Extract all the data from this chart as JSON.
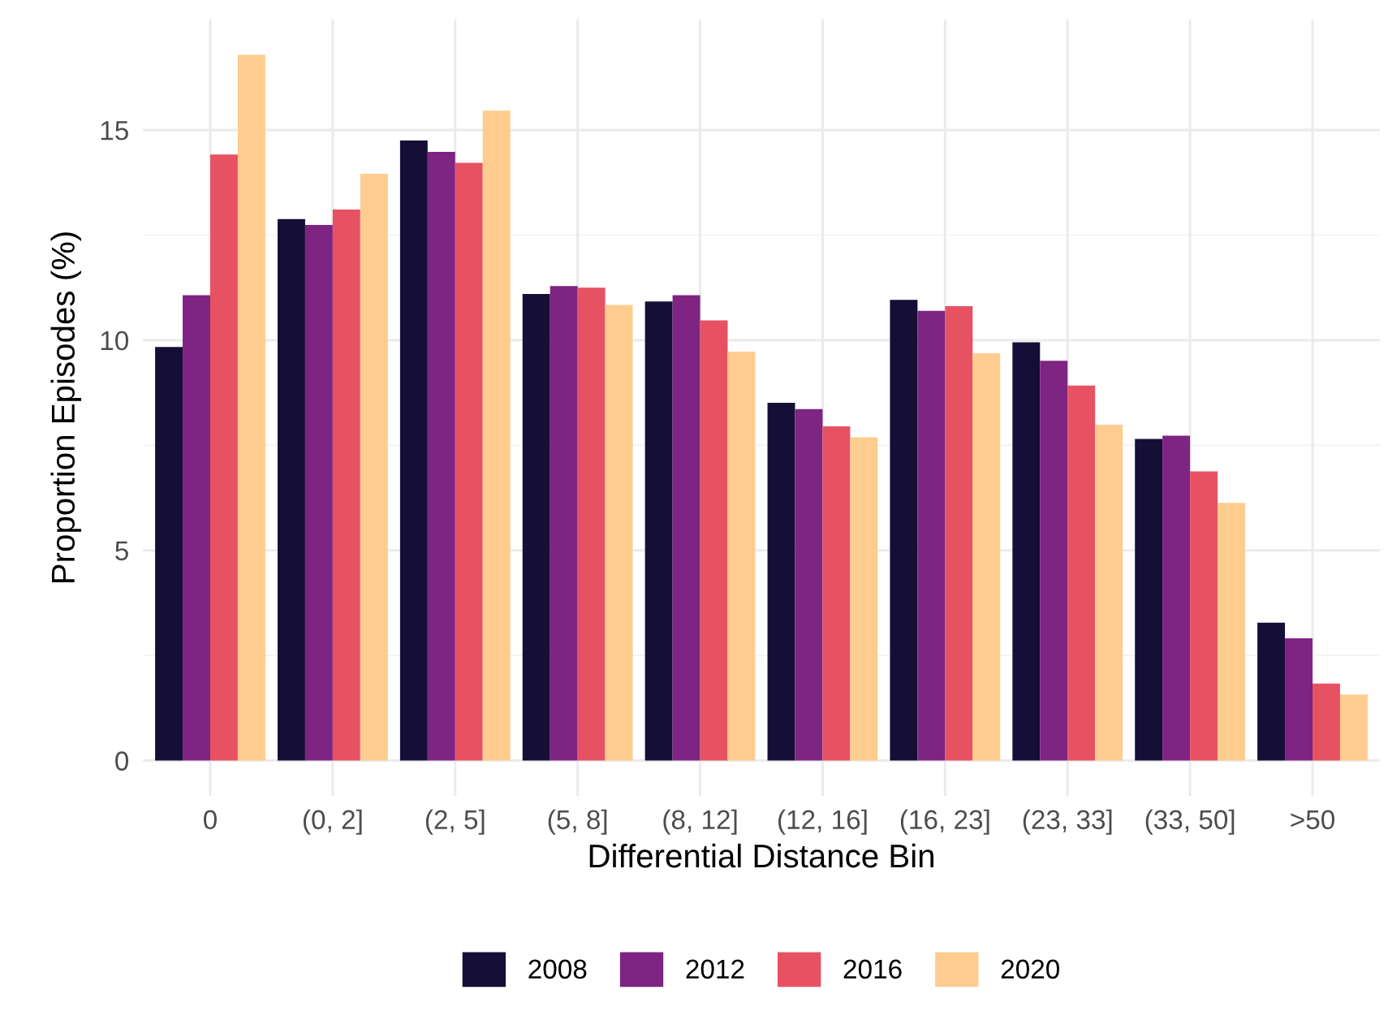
{
  "chart_data": {
    "type": "bar",
    "xlabel": "Differential Distance Bin",
    "ylabel": "Proportion Episodes (%)",
    "categories": [
      "0",
      "(0, 2]",
      "(2, 5]",
      "(5, 8]",
      "(8, 12]",
      "(12, 16]",
      "(16, 23]",
      "(23, 33]",
      "(33, 50]",
      ">50"
    ],
    "series": [
      {
        "name": "2008",
        "color": "#150e37",
        "values": [
          9.84,
          12.88,
          14.75,
          11.1,
          10.92,
          8.51,
          10.96,
          9.95,
          7.65,
          3.28
        ]
      },
      {
        "name": "2012",
        "color": "#7e2482",
        "values": [
          11.07,
          12.74,
          14.48,
          11.29,
          11.07,
          8.36,
          10.7,
          9.51,
          7.73,
          2.91
        ]
      },
      {
        "name": "2016",
        "color": "#e75263",
        "values": [
          14.42,
          13.11,
          14.22,
          11.25,
          10.47,
          7.95,
          10.81,
          8.92,
          6.88,
          1.83
        ]
      },
      {
        "name": "2020",
        "color": "#fecc8f",
        "values": [
          16.79,
          13.96,
          15.46,
          10.84,
          9.73,
          7.69,
          9.69,
          7.99,
          6.13,
          1.57
        ]
      }
    ],
    "ylim": [
      -0.84,
      17.63
    ],
    "yticks": [
      0,
      5,
      10,
      15
    ],
    "grid": true,
    "legend": "bottom"
  }
}
